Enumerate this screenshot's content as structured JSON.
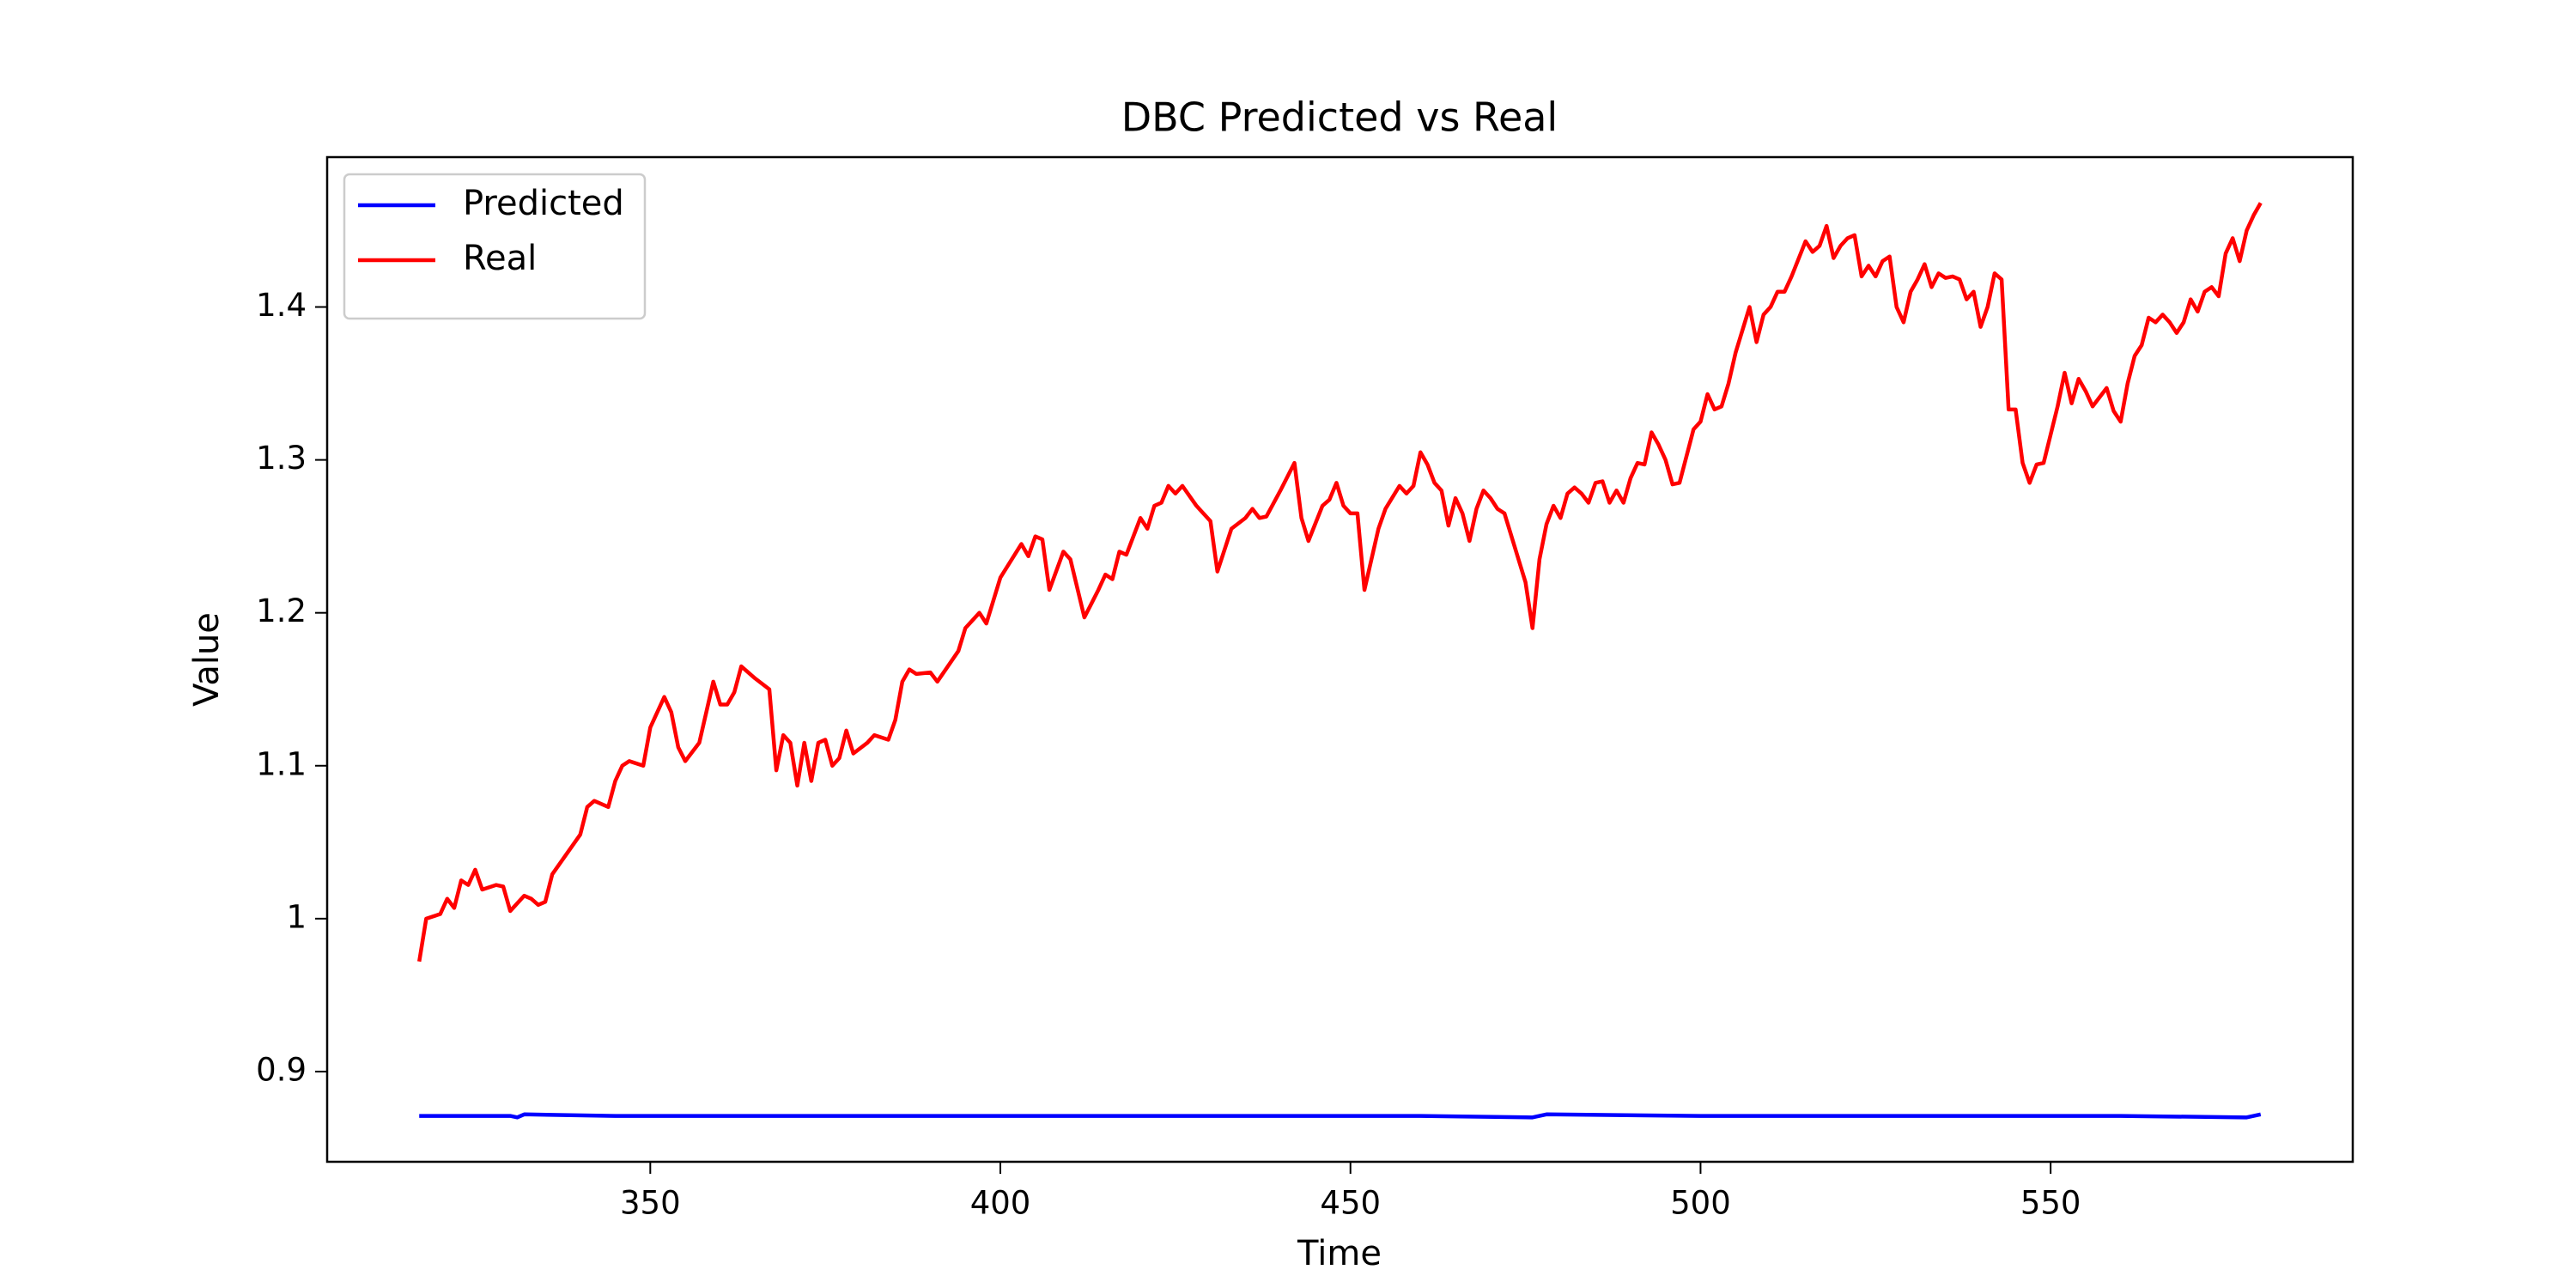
{
  "chart_data": {
    "type": "line",
    "title": "DBC Predicted vs Real",
    "xlabel": "Time",
    "ylabel": "Value",
    "xlim": [
      303.85,
      593.15
    ],
    "ylim": [
      0.841,
      1.498
    ],
    "xticks": [
      350,
      400,
      450,
      500,
      550
    ],
    "yticks": [
      0.9,
      1.0,
      1.1,
      1.2,
      1.3,
      1.4
    ],
    "legend": "upper left",
    "series": [
      {
        "name": "Predicted",
        "color": "#0000ff",
        "x": [
          317,
          330,
          331,
          332,
          345,
          360,
          380,
          400,
          420,
          440,
          460,
          476,
          478,
          500,
          520,
          540,
          560,
          578,
          580
        ],
        "values": [
          0.871,
          0.871,
          0.87,
          0.872,
          0.871,
          0.871,
          0.871,
          0.871,
          0.871,
          0.871,
          0.871,
          0.87,
          0.872,
          0.871,
          0.871,
          0.871,
          0.871,
          0.87,
          0.872
        ]
      },
      {
        "name": "Real",
        "color": "#ff0000",
        "x": [
          317,
          318,
          320,
          321,
          322,
          323,
          324,
          325,
          326,
          328,
          329,
          330,
          332,
          333,
          334,
          335,
          336,
          338,
          340,
          341,
          342,
          344,
          345,
          346,
          347,
          349,
          350,
          352,
          353,
          354,
          355,
          357,
          358,
          359,
          360,
          361,
          362,
          363,
          365,
          367,
          368,
          369,
          370,
          371,
          372,
          373,
          374,
          375,
          376,
          377,
          378,
          379,
          381,
          382,
          384,
          385,
          386,
          387,
          388,
          390,
          391,
          394,
          395,
          397,
          398,
          400,
          403,
          404,
          405,
          406,
          407,
          409,
          410,
          412,
          414,
          415,
          416,
          417,
          418,
          420,
          421,
          422,
          423,
          424,
          425,
          426,
          428,
          430,
          431,
          433,
          435,
          436,
          437,
          438,
          440,
          442,
          443,
          444,
          446,
          447,
          448,
          449,
          450,
          451,
          452,
          454,
          455,
          457,
          458,
          459,
          460,
          461,
          462,
          463,
          464,
          465,
          466,
          467,
          468,
          469,
          470,
          471,
          472,
          474,
          475,
          476,
          477,
          478,
          479,
          480,
          481,
          482,
          483,
          484,
          485,
          486,
          487,
          488,
          489,
          490,
          491,
          492,
          493,
          494,
          495,
          496,
          497,
          499,
          500,
          501,
          502,
          503,
          504,
          505,
          506,
          507,
          508,
          509,
          510,
          511,
          512,
          513,
          515,
          516,
          517,
          518,
          519,
          520,
          521,
          522,
          523,
          524,
          525,
          526,
          527,
          528,
          529,
          530,
          531,
          532,
          533,
          534,
          535,
          536,
          537,
          538,
          539,
          540,
          541,
          542,
          543,
          544,
          545,
          546,
          547,
          548,
          549,
          551,
          552,
          553,
          554,
          555,
          556,
          558,
          559,
          560,
          561,
          562,
          563,
          564,
          565,
          566,
          567,
          568,
          569,
          570,
          571,
          572,
          573,
          574,
          575,
          576,
          577,
          578,
          579,
          580
        ],
        "values": [
          0.972,
          1.0,
          1.003,
          1.013,
          1.007,
          1.025,
          1.022,
          1.032,
          1.019,
          1.022,
          1.021,
          1.005,
          1.015,
          1.013,
          1.009,
          1.011,
          1.029,
          1.042,
          1.055,
          1.073,
          1.077,
          1.073,
          1.09,
          1.1,
          1.103,
          1.1,
          1.125,
          1.145,
          1.135,
          1.112,
          1.103,
          1.115,
          1.135,
          1.155,
          1.14,
          1.14,
          1.148,
          1.165,
          1.157,
          1.15,
          1.097,
          1.12,
          1.115,
          1.087,
          1.115,
          1.09,
          1.115,
          1.117,
          1.1,
          1.105,
          1.123,
          1.108,
          1.115,
          1.12,
          1.117,
          1.13,
          1.155,
          1.163,
          1.16,
          1.161,
          1.155,
          1.175,
          1.19,
          1.2,
          1.193,
          1.223,
          1.245,
          1.237,
          1.25,
          1.248,
          1.215,
          1.24,
          1.235,
          1.197,
          1.215,
          1.225,
          1.222,
          1.24,
          1.238,
          1.262,
          1.255,
          1.27,
          1.272,
          1.283,
          1.278,
          1.283,
          1.27,
          1.26,
          1.227,
          1.255,
          1.262,
          1.268,
          1.262,
          1.263,
          1.28,
          1.298,
          1.262,
          1.247,
          1.27,
          1.274,
          1.285,
          1.27,
          1.265,
          1.265,
          1.215,
          1.255,
          1.268,
          1.283,
          1.278,
          1.283,
          1.305,
          1.297,
          1.285,
          1.28,
          1.257,
          1.275,
          1.265,
          1.247,
          1.268,
          1.28,
          1.275,
          1.268,
          1.265,
          1.235,
          1.22,
          1.19,
          1.235,
          1.258,
          1.27,
          1.262,
          1.278,
          1.282,
          1.278,
          1.272,
          1.285,
          1.286,
          1.272,
          1.28,
          1.272,
          1.288,
          1.298,
          1.297,
          1.318,
          1.31,
          1.3,
          1.284,
          1.285,
          1.32,
          1.325,
          1.343,
          1.333,
          1.335,
          1.35,
          1.37,
          1.385,
          1.4,
          1.377,
          1.395,
          1.4,
          1.41,
          1.41,
          1.42,
          1.443,
          1.436,
          1.44,
          1.453,
          1.432,
          1.44,
          1.445,
          1.447,
          1.42,
          1.427,
          1.42,
          1.43,
          1.433,
          1.4,
          1.39,
          1.41,
          1.418,
          1.428,
          1.413,
          1.422,
          1.419,
          1.42,
          1.418,
          1.405,
          1.41,
          1.387,
          1.4,
          1.422,
          1.418,
          1.333,
          1.333,
          1.298,
          1.285,
          1.297,
          1.298,
          1.335,
          1.357,
          1.337,
          1.353,
          1.345,
          1.335,
          1.347,
          1.332,
          1.325,
          1.35,
          1.368,
          1.375,
          1.393,
          1.39,
          1.395,
          1.39,
          1.383,
          1.39,
          1.405,
          1.397,
          1.41,
          1.413,
          1.407,
          1.435,
          1.445,
          1.43,
          1.45,
          1.46,
          1.468
        ]
      }
    ]
  }
}
